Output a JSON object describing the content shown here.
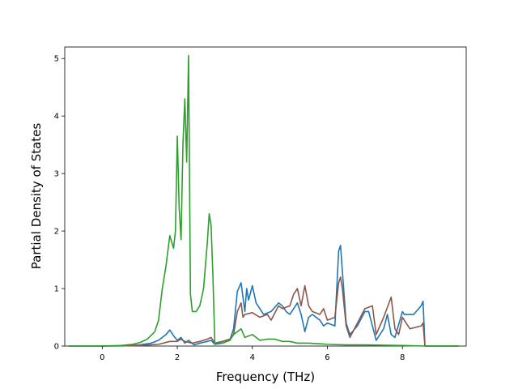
{
  "chart_data": {
    "type": "line",
    "title": "",
    "xlabel": "Frequency (THz)",
    "ylabel": "Partial Density of States",
    "xlim": [
      -1.0,
      9.7
    ],
    "ylim": [
      0,
      5.2
    ],
    "x_ticks": [
      0,
      2,
      4,
      6,
      8
    ],
    "y_ticks": [
      0,
      1,
      2,
      3,
      4,
      5
    ],
    "grid": false,
    "legend": "none",
    "series": [
      {
        "color": "#1f77b4",
        "points": [
          [
            -0.9,
            0
          ],
          [
            0,
            0
          ],
          [
            0.5,
            0.005
          ],
          [
            1.0,
            0.02
          ],
          [
            1.3,
            0.05
          ],
          [
            1.5,
            0.1
          ],
          [
            1.7,
            0.2
          ],
          [
            1.8,
            0.28
          ],
          [
            1.9,
            0.18
          ],
          [
            2.0,
            0.1
          ],
          [
            2.1,
            0.15
          ],
          [
            2.2,
            0.05
          ],
          [
            2.3,
            0.1
          ],
          [
            2.45,
            0.02
          ],
          [
            2.6,
            0.05
          ],
          [
            2.8,
            0.08
          ],
          [
            2.9,
            0.1
          ],
          [
            3.0,
            0.03
          ],
          [
            3.2,
            0.05
          ],
          [
            3.4,
            0.1
          ],
          [
            3.5,
            0.3
          ],
          [
            3.6,
            0.95
          ],
          [
            3.7,
            1.1
          ],
          [
            3.8,
            0.6
          ],
          [
            3.85,
            1.0
          ],
          [
            3.9,
            0.8
          ],
          [
            4.0,
            1.05
          ],
          [
            4.1,
            0.75
          ],
          [
            4.3,
            0.55
          ],
          [
            4.5,
            0.6
          ],
          [
            4.7,
            0.75
          ],
          [
            4.8,
            0.7
          ],
          [
            4.9,
            0.6
          ],
          [
            5.0,
            0.55
          ],
          [
            5.2,
            0.75
          ],
          [
            5.3,
            0.55
          ],
          [
            5.4,
            0.25
          ],
          [
            5.5,
            0.5
          ],
          [
            5.6,
            0.55
          ],
          [
            5.8,
            0.45
          ],
          [
            5.9,
            0.35
          ],
          [
            6.0,
            0.4
          ],
          [
            6.2,
            0.35
          ],
          [
            6.3,
            1.65
          ],
          [
            6.35,
            1.75
          ],
          [
            6.4,
            1.3
          ],
          [
            6.5,
            0.4
          ],
          [
            6.6,
            0.2
          ],
          [
            6.8,
            0.35
          ],
          [
            7.0,
            0.6
          ],
          [
            7.1,
            0.6
          ],
          [
            7.2,
            0.35
          ],
          [
            7.3,
            0.1
          ],
          [
            7.5,
            0.3
          ],
          [
            7.6,
            0.55
          ],
          [
            7.7,
            0.2
          ],
          [
            7.8,
            0.15
          ],
          [
            8.0,
            0.6
          ],
          [
            8.05,
            0.55
          ],
          [
            8.3,
            0.55
          ],
          [
            8.5,
            0.7
          ],
          [
            8.55,
            0.78
          ],
          [
            8.6,
            0
          ],
          [
            9.5,
            0
          ]
        ]
      },
      {
        "color": "#8c564b",
        "points": [
          [
            -0.9,
            0
          ],
          [
            0,
            0
          ],
          [
            0.5,
            0.002
          ],
          [
            1.0,
            0.01
          ],
          [
            1.5,
            0.03
          ],
          [
            1.8,
            0.08
          ],
          [
            2.0,
            0.08
          ],
          [
            2.1,
            0.12
          ],
          [
            2.2,
            0.08
          ],
          [
            2.4,
            0.05
          ],
          [
            2.6,
            0.08
          ],
          [
            2.8,
            0.12
          ],
          [
            2.9,
            0.15
          ],
          [
            3.0,
            0.05
          ],
          [
            3.2,
            0.08
          ],
          [
            3.4,
            0.12
          ],
          [
            3.5,
            0.2
          ],
          [
            3.6,
            0.6
          ],
          [
            3.7,
            0.75
          ],
          [
            3.75,
            0.5
          ],
          [
            3.8,
            0.55
          ],
          [
            4.0,
            0.58
          ],
          [
            4.2,
            0.5
          ],
          [
            4.4,
            0.55
          ],
          [
            4.5,
            0.45
          ],
          [
            4.7,
            0.7
          ],
          [
            4.8,
            0.65
          ],
          [
            5.0,
            0.7
          ],
          [
            5.1,
            0.9
          ],
          [
            5.2,
            1.0
          ],
          [
            5.3,
            0.7
          ],
          [
            5.4,
            1.05
          ],
          [
            5.5,
            0.7
          ],
          [
            5.6,
            0.6
          ],
          [
            5.8,
            0.55
          ],
          [
            5.9,
            0.65
          ],
          [
            6.0,
            0.45
          ],
          [
            6.2,
            0.5
          ],
          [
            6.3,
            1.1
          ],
          [
            6.35,
            1.2
          ],
          [
            6.4,
            1.0
          ],
          [
            6.5,
            0.35
          ],
          [
            6.6,
            0.15
          ],
          [
            6.8,
            0.4
          ],
          [
            7.0,
            0.65
          ],
          [
            7.2,
            0.7
          ],
          [
            7.3,
            0.2
          ],
          [
            7.5,
            0.5
          ],
          [
            7.7,
            0.85
          ],
          [
            7.8,
            0.3
          ],
          [
            7.9,
            0.2
          ],
          [
            8.0,
            0.5
          ],
          [
            8.2,
            0.3
          ],
          [
            8.5,
            0.35
          ],
          [
            8.55,
            0.4
          ],
          [
            8.6,
            0
          ],
          [
            9.5,
            0
          ]
        ]
      },
      {
        "color": "#2ca02c",
        "points": [
          [
            -0.9,
            0
          ],
          [
            0,
            0
          ],
          [
            0.5,
            0.01
          ],
          [
            0.8,
            0.03
          ],
          [
            1.0,
            0.06
          ],
          [
            1.2,
            0.12
          ],
          [
            1.4,
            0.25
          ],
          [
            1.5,
            0.45
          ],
          [
            1.6,
            1.0
          ],
          [
            1.7,
            1.4
          ],
          [
            1.8,
            1.92
          ],
          [
            1.9,
            1.7
          ],
          [
            1.95,
            2.0
          ],
          [
            2.0,
            3.65
          ],
          [
            2.05,
            2.4
          ],
          [
            2.1,
            1.85
          ],
          [
            2.15,
            3.5
          ],
          [
            2.2,
            4.3
          ],
          [
            2.25,
            3.2
          ],
          [
            2.3,
            5.05
          ],
          [
            2.35,
            0.9
          ],
          [
            2.4,
            0.6
          ],
          [
            2.5,
            0.6
          ],
          [
            2.6,
            0.7
          ],
          [
            2.7,
            1.0
          ],
          [
            2.8,
            1.8
          ],
          [
            2.85,
            2.3
          ],
          [
            2.9,
            2.1
          ],
          [
            2.95,
            1.2
          ],
          [
            3.0,
            0.05
          ],
          [
            3.2,
            0.05
          ],
          [
            3.4,
            0.1
          ],
          [
            3.5,
            0.2
          ],
          [
            3.7,
            0.3
          ],
          [
            3.8,
            0.15
          ],
          [
            4.0,
            0.2
          ],
          [
            4.2,
            0.1
          ],
          [
            4.4,
            0.12
          ],
          [
            4.6,
            0.12
          ],
          [
            4.8,
            0.08
          ],
          [
            5.0,
            0.08
          ],
          [
            5.2,
            0.05
          ],
          [
            5.5,
            0.05
          ],
          [
            5.8,
            0.04
          ],
          [
            6.0,
            0.03
          ],
          [
            6.5,
            0.02
          ],
          [
            7.0,
            0.02
          ],
          [
            8.0,
            0.01
          ],
          [
            8.6,
            0
          ],
          [
            9.5,
            0
          ]
        ]
      }
    ]
  }
}
